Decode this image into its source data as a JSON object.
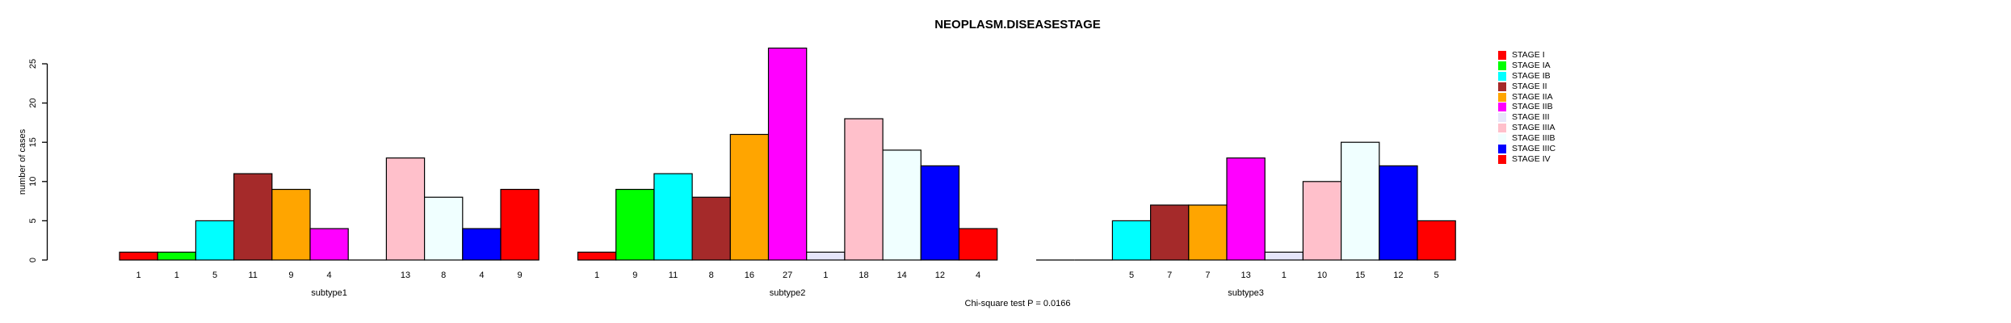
{
  "title": "NEOPLASM.DISEASESTAGE",
  "footnote": "Chi-square test P = 0.0166",
  "y_axis": {
    "label": "number of cases",
    "ticks": [
      0,
      5,
      10,
      15,
      20,
      25
    ]
  },
  "chart_data": {
    "type": "bar",
    "grouped": true,
    "title": "NEOPLASM.DISEASESTAGE",
    "xlabel": "",
    "ylabel": "number of cases",
    "ylim": [
      0,
      25
    ],
    "yticks": [
      0,
      5,
      10,
      15,
      20,
      25
    ],
    "grid": false,
    "legend_position": "right",
    "bar_border_color": "#000000",
    "categories": [
      "subtype1",
      "subtype2",
      "subtype3"
    ],
    "series": [
      {
        "name": "STAGE I",
        "color": "#FF0000",
        "values": [
          1,
          1,
          0
        ]
      },
      {
        "name": "STAGE IA",
        "color": "#00FF00",
        "values": [
          1,
          9,
          0
        ]
      },
      {
        "name": "STAGE IB",
        "color": "#00FFFF",
        "values": [
          5,
          11,
          5
        ]
      },
      {
        "name": "STAGE II",
        "color": "#A52A2A",
        "values": [
          11,
          8,
          7
        ]
      },
      {
        "name": "STAGE IIA",
        "color": "#FFA500",
        "values": [
          9,
          16,
          7
        ]
      },
      {
        "name": "STAGE IIB",
        "color": "#FF00FF",
        "values": [
          4,
          27,
          13
        ]
      },
      {
        "name": "STAGE III",
        "color": "#E6E6FA",
        "values": [
          0,
          1,
          1
        ]
      },
      {
        "name": "STAGE IIIA",
        "color": "#FFC0CB",
        "values": [
          13,
          18,
          10
        ]
      },
      {
        "name": "STAGE IIIB",
        "color": "#F0FFFF",
        "values": [
          8,
          14,
          15
        ]
      },
      {
        "name": "STAGE IIIC",
        "color": "#0000FF",
        "values": [
          4,
          12,
          12
        ]
      },
      {
        "name": "STAGE IV",
        "color": "#FF0000",
        "values": [
          9,
          4,
          5
        ]
      }
    ],
    "value_labels_under_bars": true,
    "zero_values_drawn_as_baseline_segments_without_labels": true
  }
}
